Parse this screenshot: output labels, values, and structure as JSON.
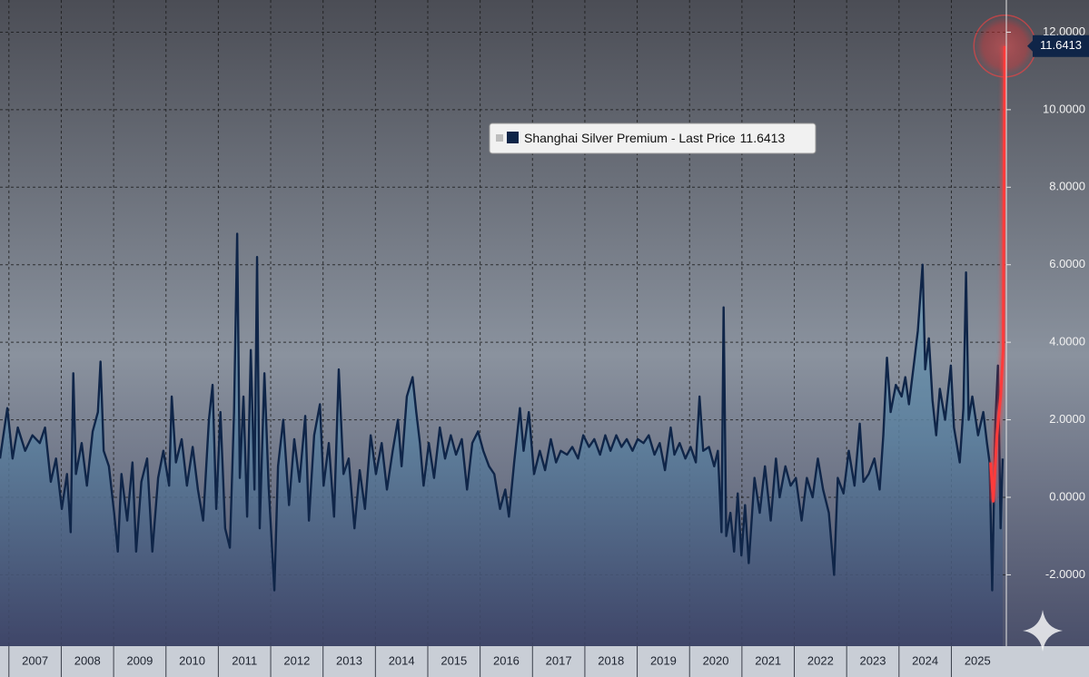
{
  "chart_data": {
    "type": "line",
    "series": [
      {
        "name": "Shanghai Silver Premium - Last Price",
        "color": "#0f2548",
        "values": [
          1.0,
          2.3,
          1.0,
          1.8,
          1.2,
          1.6,
          1.4,
          1.8,
          0.4,
          1.0,
          -0.3,
          0.6,
          -0.9,
          3.2,
          0.6,
          1.4,
          0.3,
          1.7,
          2.2,
          3.5,
          1.2,
          0.8,
          -0.4,
          -1.4,
          0.6,
          -0.6,
          0.9,
          -1.4,
          0.4,
          1.0,
          -1.4,
          0.5,
          1.2,
          0.3,
          2.6,
          0.9,
          1.5,
          0.3,
          1.3,
          0.2,
          -0.6,
          2.0,
          2.9,
          -0.3,
          2.2,
          -0.8,
          -1.3,
          2.2,
          6.8,
          0.5,
          2.6,
          -0.5,
          3.8,
          0.2,
          6.2,
          -0.8,
          3.2,
          0.3,
          -2.4,
          0.8,
          2.0,
          -0.2,
          1.5,
          0.4,
          2.1,
          -0.6,
          1.6,
          2.4,
          0.3,
          1.4,
          -0.5,
          3.3,
          0.6,
          1.0,
          -0.8,
          0.7,
          -0.3,
          1.6,
          0.6,
          1.4,
          0.2,
          1.2,
          2.0,
          0.8,
          2.6,
          3.1,
          2.2,
          1.4,
          0.3,
          1.4,
          0.5,
          1.8,
          1.0,
          1.6,
          1.1,
          1.5,
          0.2,
          1.4,
          1.7,
          1.2,
          0.8,
          0.6,
          -0.3,
          0.2,
          -0.5,
          0.9,
          2.3,
          1.2,
          2.2,
          0.6,
          1.2,
          0.7,
          1.5,
          0.9,
          1.2,
          1.1,
          1.3,
          1.0,
          1.6,
          1.3,
          1.5,
          1.1,
          1.6,
          1.2,
          1.6,
          1.3,
          1.5,
          1.2,
          1.5,
          1.4,
          1.6,
          1.1,
          1.4,
          0.7,
          1.8,
          1.1,
          1.4,
          1.0,
          1.3,
          0.9,
          2.6,
          1.2,
          1.3,
          0.8,
          1.2,
          -0.9,
          4.9,
          -1.0,
          -0.4,
          -1.4,
          0.1,
          -1.5,
          -0.2,
          -1.7,
          0.5,
          -0.4,
          0.8,
          -0.6,
          1.0,
          0.0,
          0.8,
          0.3,
          0.5,
          -0.6,
          0.5,
          0.0,
          1.0,
          0.2,
          -0.4,
          -2.0,
          0.5,
          0.1,
          1.2,
          0.3,
          1.9,
          0.4,
          0.6,
          1.0,
          0.2,
          1.6,
          3.6,
          2.2,
          2.9,
          2.6,
          3.1,
          2.4,
          3.5,
          4.3,
          6.0,
          3.3,
          4.1,
          2.5,
          1.6,
          2.8,
          2.0,
          3.4,
          1.8,
          0.9,
          2.3,
          5.8,
          2.0,
          2.6,
          1.6,
          2.2,
          1.4,
          0.9,
          -2.4,
          1.9,
          3.4,
          -0.8,
          1.0
        ]
      }
    ],
    "x": [
      2006.83,
      2006.97,
      2007.07,
      2007.17,
      2007.31,
      2007.45,
      2007.59,
      2007.69,
      2007.8,
      2007.9,
      2008.01,
      2008.11,
      2008.18,
      2008.23,
      2008.28,
      2008.39,
      2008.49,
      2008.6,
      2008.7,
      2008.75,
      2008.81,
      2008.91,
      2009.01,
      2009.08,
      2009.15,
      2009.26,
      2009.36,
      2009.43,
      2009.53,
      2009.64,
      2009.74,
      2009.85,
      2009.95,
      2010.06,
      2010.11,
      2010.19,
      2010.3,
      2010.4,
      2010.51,
      2010.61,
      2010.71,
      2010.82,
      2010.89,
      2010.96,
      2011.04,
      2011.13,
      2011.22,
      2011.3,
      2011.36,
      2011.41,
      2011.48,
      2011.55,
      2011.62,
      2011.69,
      2011.74,
      2011.79,
      2011.88,
      2011.96,
      2012.07,
      2012.14,
      2012.24,
      2012.35,
      2012.45,
      2012.55,
      2012.66,
      2012.73,
      2012.83,
      2012.94,
      2013.01,
      2013.11,
      2013.21,
      2013.3,
      2013.39,
      2013.49,
      2013.6,
      2013.7,
      2013.8,
      2013.91,
      2014.01,
      2014.12,
      2014.22,
      2014.33,
      2014.43,
      2014.5,
      2014.6,
      2014.71,
      2014.78,
      2014.85,
      2014.92,
      2015.02,
      2015.12,
      2015.23,
      2015.33,
      2015.44,
      2015.54,
      2015.65,
      2015.75,
      2015.85,
      2015.96,
      2016.06,
      2016.17,
      2016.27,
      2016.38,
      2016.48,
      2016.55,
      2016.65,
      2016.76,
      2016.83,
      2016.93,
      2017.03,
      2017.14,
      2017.24,
      2017.35,
      2017.45,
      2017.54,
      2017.66,
      2017.76,
      2017.87,
      2017.97,
      2018.08,
      2018.18,
      2018.29,
      2018.39,
      2018.49,
      2018.6,
      2018.7,
      2018.8,
      2018.91,
      2019.01,
      2019.12,
      2019.22,
      2019.33,
      2019.43,
      2019.53,
      2019.64,
      2019.71,
      2019.81,
      2019.92,
      2020.02,
      2020.12,
      2020.19,
      2020.26,
      2020.37,
      2020.47,
      2020.54,
      2020.61,
      2020.65,
      2020.7,
      2020.78,
      2020.85,
      2020.92,
      2020.99,
      2021.06,
      2021.13,
      2021.24,
      2021.34,
      2021.44,
      2021.55,
      2021.65,
      2021.72,
      2021.83,
      2021.93,
      2022.03,
      2022.14,
      2022.24,
      2022.35,
      2022.45,
      2022.55,
      2022.66,
      2022.76,
      2022.83,
      2022.94,
      2023.04,
      2023.15,
      2023.25,
      2023.32,
      2023.42,
      2023.53,
      2023.63,
      2023.7,
      2023.77,
      2023.84,
      2023.94,
      2024.05,
      2024.12,
      2024.19,
      2024.29,
      2024.36,
      2024.45,
      2024.5,
      2024.57,
      2024.64,
      2024.71,
      2024.78,
      2024.88,
      2024.99,
      2025.05,
      2025.16,
      2025.23,
      2025.28,
      2025.33,
      2025.4,
      2025.51,
      2025.61,
      2025.68,
      2025.73,
      2025.78,
      2025.84,
      2025.89,
      2025.94,
      2025.98
    ],
    "highlight": {
      "color": "#ff3b3b",
      "x": [
        2025.75,
        2025.8,
        2025.87,
        2025.94,
        2025.99,
        2026.02
      ],
      "values": [
        0.9,
        -0.1,
        1.6,
        2.6,
        3.8,
        11.6413
      ]
    },
    "xlim": [
      2006.83,
      2026.05
    ],
    "ylim": [
      -3.84,
      12.83
    ],
    "xticks": [
      2007,
      2008,
      2009,
      2010,
      2011,
      2012,
      2013,
      2014,
      2015,
      2016,
      2017,
      2018,
      2019,
      2020,
      2021,
      2022,
      2023,
      2024,
      2025
    ],
    "yticks": [
      {
        "value": -2,
        "label": "-2.0000"
      },
      {
        "value": 0,
        "label": "0.0000"
      },
      {
        "value": 2,
        "label": "2.0000"
      },
      {
        "value": 4,
        "label": "4.0000"
      },
      {
        "value": 6,
        "label": "6.0000"
      },
      {
        "value": 8,
        "label": "8.0000"
      },
      {
        "value": 10,
        "label": "10.0000"
      },
      {
        "value": 12,
        "label": "12.0000"
      }
    ],
    "grid": true,
    "legend": "top"
  }
}
